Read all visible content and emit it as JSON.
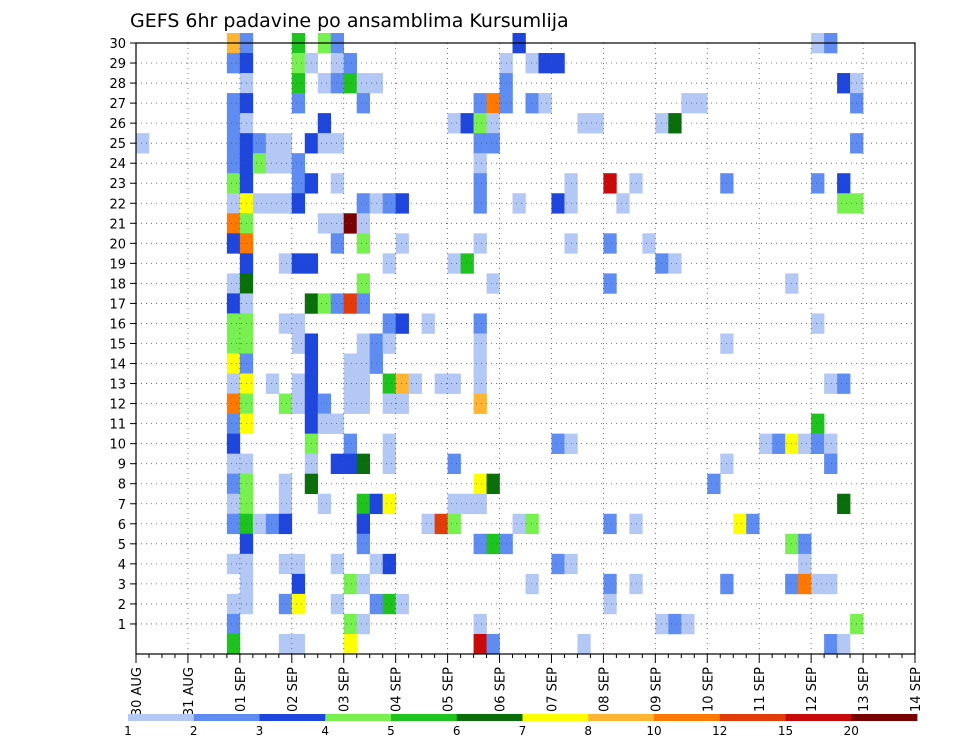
{
  "chart_data": {
    "type": "heatmap",
    "title": "GEFS 6hr padavine po ansamblima Kursumlija",
    "xlabel": "",
    "ylabel": "",
    "x_ticks": [
      "30 AUG",
      "31 AUG",
      "01 SEP",
      "02 SEP",
      "03 SEP",
      "04 SEP",
      "05 SEP",
      "06 SEP",
      "07 SEP",
      "08 SEP",
      "09 SEP",
      "10 SEP",
      "11 SEP",
      "12 SEP",
      "13 SEP",
      "14 SEP"
    ],
    "x_range": [
      "30 AUG 00Z",
      "14 SEP 00Z"
    ],
    "time_step_hours": 6,
    "y_ticks": [
      1,
      2,
      3,
      4,
      5,
      6,
      7,
      8,
      9,
      10,
      11,
      12,
      13,
      14,
      15,
      16,
      17,
      18,
      19,
      20,
      21,
      22,
      23,
      24,
      25,
      26,
      27,
      28,
      29,
      30
    ],
    "y_range": [
      0,
      30
    ],
    "grid": true,
    "colorbar": {
      "labels": [
        "1",
        "2",
        "3",
        "4",
        "5",
        "6",
        "7",
        "8",
        "10",
        "12",
        "15",
        "20"
      ],
      "colors": [
        "#b4c8f5",
        "#5f8cf0",
        "#1e46dc",
        "#78f050",
        "#1ec31e",
        "#0a6e0a",
        "#ffff00",
        "#ffb432",
        "#ff7800",
        "#e13c0a",
        "#c80a0a",
        "#780000"
      ]
    },
    "note_cells": "cells: [member, time step index (6h steps from 30 AUG 00Z), color class index 0-11]",
    "cells": [
      [
        30,
        7,
        7
      ],
      [
        30,
        8,
        1
      ],
      [
        30,
        12,
        4
      ],
      [
        30,
        14,
        3
      ],
      [
        30,
        15,
        1
      ],
      [
        30,
        29,
        2
      ],
      [
        30,
        52,
        0
      ],
      [
        30,
        53,
        1
      ],
      [
        29,
        7,
        1
      ],
      [
        29,
        8,
        2
      ],
      [
        29,
        12,
        3
      ],
      [
        29,
        13,
        0
      ],
      [
        29,
        15,
        0
      ],
      [
        29,
        16,
        1
      ],
      [
        29,
        28,
        0
      ],
      [
        29,
        30,
        0
      ],
      [
        29,
        31,
        2
      ],
      [
        29,
        32,
        2
      ],
      [
        28,
        8,
        0
      ],
      [
        28,
        12,
        4
      ],
      [
        28,
        14,
        0
      ],
      [
        28,
        15,
        1
      ],
      [
        28,
        16,
        4
      ],
      [
        28,
        17,
        0
      ],
      [
        28,
        18,
        0
      ],
      [
        28,
        28,
        1
      ],
      [
        28,
        54,
        2
      ],
      [
        28,
        55,
        0
      ],
      [
        27,
        7,
        1
      ],
      [
        27,
        8,
        2
      ],
      [
        27,
        12,
        1
      ],
      [
        27,
        17,
        1
      ],
      [
        27,
        26,
        1
      ],
      [
        27,
        27,
        8
      ],
      [
        27,
        28,
        1
      ],
      [
        27,
        30,
        1
      ],
      [
        27,
        31,
        0
      ],
      [
        27,
        42,
        0
      ],
      [
        27,
        43,
        0
      ],
      [
        27,
        55,
        1
      ],
      [
        26,
        7,
        1
      ],
      [
        26,
        8,
        0
      ],
      [
        26,
        14,
        2
      ],
      [
        26,
        24,
        0
      ],
      [
        26,
        25,
        2
      ],
      [
        26,
        26,
        3
      ],
      [
        26,
        27,
        0
      ],
      [
        26,
        34,
        0
      ],
      [
        26,
        35,
        0
      ],
      [
        26,
        40,
        0
      ],
      [
        26,
        41,
        5
      ],
      [
        25,
        0,
        0
      ],
      [
        25,
        7,
        1
      ],
      [
        25,
        8,
        2
      ],
      [
        25,
        9,
        1
      ],
      [
        25,
        10,
        0
      ],
      [
        25,
        11,
        0
      ],
      [
        25,
        13,
        2
      ],
      [
        25,
        14,
        0
      ],
      [
        25,
        15,
        0
      ],
      [
        25,
        26,
        1
      ],
      [
        25,
        27,
        1
      ],
      [
        25,
        55,
        1
      ],
      [
        24,
        7,
        1
      ],
      [
        24,
        8,
        2
      ],
      [
        24,
        9,
        3
      ],
      [
        24,
        10,
        0
      ],
      [
        24,
        11,
        0
      ],
      [
        24,
        12,
        1
      ],
      [
        24,
        26,
        0
      ],
      [
        23,
        7,
        3
      ],
      [
        23,
        8,
        2
      ],
      [
        23,
        12,
        1
      ],
      [
        23,
        13,
        2
      ],
      [
        23,
        15,
        0
      ],
      [
        23,
        26,
        1
      ],
      [
        23,
        33,
        0
      ],
      [
        23,
        36,
        10
      ],
      [
        23,
        38,
        0
      ],
      [
        23,
        45,
        1
      ],
      [
        23,
        52,
        1
      ],
      [
        23,
        54,
        2
      ],
      [
        22,
        7,
        0
      ],
      [
        22,
        8,
        6
      ],
      [
        22,
        9,
        0
      ],
      [
        22,
        10,
        0
      ],
      [
        22,
        11,
        0
      ],
      [
        22,
        12,
        2
      ],
      [
        22,
        17,
        1
      ],
      [
        22,
        18,
        0
      ],
      [
        22,
        19,
        1
      ],
      [
        22,
        20,
        2
      ],
      [
        22,
        26,
        1
      ],
      [
        22,
        29,
        0
      ],
      [
        22,
        32,
        2
      ],
      [
        22,
        33,
        0
      ],
      [
        22,
        37,
        0
      ],
      [
        22,
        54,
        3
      ],
      [
        22,
        55,
        3
      ],
      [
        21,
        7,
        8
      ],
      [
        21,
        8,
        3
      ],
      [
        21,
        14,
        0
      ],
      [
        21,
        15,
        0
      ],
      [
        21,
        16,
        11
      ],
      [
        21,
        17,
        0
      ],
      [
        20,
        7,
        2
      ],
      [
        20,
        8,
        8
      ],
      [
        20,
        15,
        1
      ],
      [
        20,
        17,
        3
      ],
      [
        20,
        20,
        0
      ],
      [
        20,
        26,
        0
      ],
      [
        20,
        33,
        0
      ],
      [
        20,
        36,
        1
      ],
      [
        20,
        39,
        0
      ],
      [
        19,
        8,
        2
      ],
      [
        19,
        11,
        0
      ],
      [
        19,
        12,
        2
      ],
      [
        19,
        13,
        2
      ],
      [
        19,
        19,
        0
      ],
      [
        19,
        24,
        0
      ],
      [
        19,
        25,
        4
      ],
      [
        19,
        40,
        1
      ],
      [
        19,
        41,
        0
      ],
      [
        18,
        7,
        0
      ],
      [
        18,
        8,
        5
      ],
      [
        18,
        17,
        3
      ],
      [
        18,
        27,
        0
      ],
      [
        18,
        36,
        1
      ],
      [
        18,
        50,
        0
      ],
      [
        17,
        7,
        2
      ],
      [
        17,
        8,
        0
      ],
      [
        17,
        13,
        5
      ],
      [
        17,
        14,
        3
      ],
      [
        17,
        15,
        1
      ],
      [
        17,
        16,
        9
      ],
      [
        17,
        17,
        1
      ],
      [
        16,
        7,
        3
      ],
      [
        16,
        8,
        3
      ],
      [
        16,
        11,
        0
      ],
      [
        16,
        12,
        0
      ],
      [
        16,
        19,
        1
      ],
      [
        16,
        20,
        2
      ],
      [
        16,
        22,
        0
      ],
      [
        16,
        26,
        1
      ],
      [
        16,
        52,
        0
      ],
      [
        15,
        7,
        3
      ],
      [
        15,
        8,
        3
      ],
      [
        15,
        12,
        0
      ],
      [
        15,
        13,
        2
      ],
      [
        15,
        17,
        0
      ],
      [
        15,
        18,
        1
      ],
      [
        15,
        19,
        0
      ],
      [
        15,
        26,
        0
      ],
      [
        15,
        45,
        0
      ],
      [
        14,
        7,
        6
      ],
      [
        14,
        8,
        1
      ],
      [
        14,
        13,
        2
      ],
      [
        14,
        16,
        0
      ],
      [
        14,
        17,
        0
      ],
      [
        14,
        18,
        1
      ],
      [
        14,
        26,
        0
      ],
      [
        13,
        7,
        0
      ],
      [
        13,
        8,
        6
      ],
      [
        13,
        10,
        0
      ],
      [
        13,
        12,
        0
      ],
      [
        13,
        13,
        2
      ],
      [
        13,
        16,
        0
      ],
      [
        13,
        17,
        0
      ],
      [
        13,
        19,
        4
      ],
      [
        13,
        20,
        7
      ],
      [
        13,
        21,
        0
      ],
      [
        13,
        23,
        0
      ],
      [
        13,
        24,
        0
      ],
      [
        13,
        26,
        0
      ],
      [
        13,
        53,
        0
      ],
      [
        13,
        54,
        1
      ],
      [
        12,
        7,
        8
      ],
      [
        12,
        8,
        3
      ],
      [
        12,
        11,
        3
      ],
      [
        12,
        12,
        0
      ],
      [
        12,
        13,
        2
      ],
      [
        12,
        14,
        1
      ],
      [
        12,
        16,
        0
      ],
      [
        12,
        17,
        0
      ],
      [
        12,
        19,
        0
      ],
      [
        12,
        20,
        0
      ],
      [
        12,
        26,
        7
      ],
      [
        11,
        7,
        1
      ],
      [
        11,
        8,
        6
      ],
      [
        11,
        13,
        2
      ],
      [
        11,
        14,
        0
      ],
      [
        11,
        15,
        0
      ],
      [
        11,
        52,
        4
      ],
      [
        10,
        7,
        2
      ],
      [
        10,
        13,
        3
      ],
      [
        10,
        16,
        1
      ],
      [
        10,
        19,
        0
      ],
      [
        10,
        32,
        1
      ],
      [
        10,
        33,
        0
      ],
      [
        10,
        48,
        0
      ],
      [
        10,
        49,
        1
      ],
      [
        10,
        50,
        6
      ],
      [
        10,
        51,
        0
      ],
      [
        10,
        52,
        1
      ],
      [
        10,
        53,
        0
      ],
      [
        9,
        7,
        0
      ],
      [
        9,
        8,
        0
      ],
      [
        9,
        13,
        0
      ],
      [
        9,
        15,
        2
      ],
      [
        9,
        16,
        2
      ],
      [
        9,
        17,
        5
      ],
      [
        9,
        19,
        0
      ],
      [
        9,
        24,
        1
      ],
      [
        9,
        45,
        0
      ],
      [
        9,
        53,
        1
      ],
      [
        8,
        7,
        1
      ],
      [
        8,
        8,
        3
      ],
      [
        8,
        11,
        0
      ],
      [
        8,
        13,
        5
      ],
      [
        8,
        26,
        6
      ],
      [
        8,
        27,
        5
      ],
      [
        8,
        44,
        1
      ],
      [
        7,
        7,
        0
      ],
      [
        7,
        8,
        3
      ],
      [
        7,
        11,
        0
      ],
      [
        7,
        14,
        0
      ],
      [
        7,
        17,
        4
      ],
      [
        7,
        18,
        2
      ],
      [
        7,
        19,
        6
      ],
      [
        7,
        24,
        0
      ],
      [
        7,
        25,
        0
      ],
      [
        7,
        26,
        0
      ],
      [
        7,
        54,
        5
      ],
      [
        6,
        7,
        1
      ],
      [
        6,
        8,
        4
      ],
      [
        6,
        9,
        0
      ],
      [
        6,
        10,
        1
      ],
      [
        6,
        11,
        2
      ],
      [
        6,
        17,
        2
      ],
      [
        6,
        22,
        0
      ],
      [
        6,
        23,
        9
      ],
      [
        6,
        24,
        3
      ],
      [
        6,
        29,
        0
      ],
      [
        6,
        30,
        3
      ],
      [
        6,
        36,
        1
      ],
      [
        6,
        38,
        0
      ],
      [
        6,
        46,
        6
      ],
      [
        6,
        47,
        1
      ],
      [
        5,
        8,
        2
      ],
      [
        5,
        17,
        1
      ],
      [
        5,
        26,
        1
      ],
      [
        5,
        27,
        4
      ],
      [
        5,
        28,
        1
      ],
      [
        5,
        50,
        3
      ],
      [
        5,
        51,
        1
      ],
      [
        4,
        7,
        0
      ],
      [
        4,
        8,
        0
      ],
      [
        4,
        11,
        0
      ],
      [
        4,
        12,
        0
      ],
      [
        4,
        15,
        0
      ],
      [
        4,
        18,
        0
      ],
      [
        4,
        19,
        2
      ],
      [
        4,
        32,
        1
      ],
      [
        4,
        33,
        0
      ],
      [
        4,
        51,
        0
      ],
      [
        3,
        8,
        0
      ],
      [
        3,
        12,
        2
      ],
      [
        3,
        16,
        3
      ],
      [
        3,
        17,
        0
      ],
      [
        3,
        30,
        0
      ],
      [
        3,
        36,
        1
      ],
      [
        3,
        38,
        0
      ],
      [
        3,
        45,
        1
      ],
      [
        3,
        50,
        1
      ],
      [
        3,
        51,
        8
      ],
      [
        3,
        52,
        0
      ],
      [
        3,
        53,
        0
      ],
      [
        2,
        7,
        0
      ],
      [
        2,
        8,
        0
      ],
      [
        2,
        11,
        1
      ],
      [
        2,
        12,
        6
      ],
      [
        2,
        15,
        0
      ],
      [
        2,
        18,
        1
      ],
      [
        2,
        19,
        4
      ],
      [
        2,
        20,
        0
      ],
      [
        2,
        36,
        0
      ],
      [
        1,
        7,
        1
      ],
      [
        1,
        16,
        3
      ],
      [
        1,
        17,
        0
      ],
      [
        1,
        26,
        0
      ],
      [
        1,
        40,
        0
      ],
      [
        1,
        41,
        1
      ],
      [
        1,
        42,
        0
      ],
      [
        1,
        55,
        3
      ],
      [
        0,
        7,
        4
      ],
      [
        0,
        11,
        0
      ],
      [
        0,
        12,
        0
      ],
      [
        0,
        16,
        6
      ],
      [
        0,
        26,
        10
      ],
      [
        0,
        27,
        1
      ],
      [
        0,
        34,
        0
      ],
      [
        0,
        53,
        1
      ],
      [
        0,
        54,
        0
      ]
    ]
  }
}
